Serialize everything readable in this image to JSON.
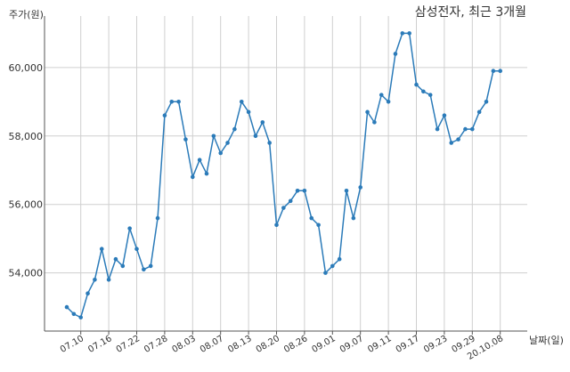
{
  "chart_data": {
    "type": "line",
    "title": "삼성전자, 최근 3개월",
    "xlabel": "날짜(일)",
    "ylabel": "주가(원)",
    "ylim": [
      52300,
      61400
    ],
    "yticks": [
      54000,
      56000,
      58000,
      60000
    ],
    "ytick_labels": [
      "54,000",
      "56,000",
      "58,000",
      "60,000"
    ],
    "xtick_labels": [
      "07.10",
      "07.16",
      "07.22",
      "07.28",
      "08.03",
      "08.07",
      "08.13",
      "08.20",
      "08.26",
      "09.01",
      "09.07",
      "09.11",
      "09.17",
      "09.23",
      "09.29",
      "20.10.08"
    ],
    "xtick_positions": [
      2,
      6,
      10,
      14,
      18,
      22,
      26,
      30,
      34,
      38,
      42,
      46,
      50,
      54,
      58,
      62
    ],
    "x_count": 63,
    "grid": true,
    "color": "#2b7bb9",
    "values": [
      53000,
      52800,
      52700,
      53400,
      53800,
      54700,
      53800,
      54400,
      54200,
      55300,
      54700,
      54100,
      54200,
      55600,
      58600,
      59000,
      59000,
      57900,
      56800,
      57300,
      56900,
      58000,
      57500,
      57800,
      58200,
      59000,
      58700,
      58000,
      58400,
      57800,
      55400,
      55900,
      56100,
      56400,
      56400,
      55600,
      55400,
      54000,
      54200,
      54400,
      56400,
      55600,
      56500,
      58700,
      58400,
      59200,
      59000,
      60400,
      61000,
      61000,
      59500,
      59300,
      59200,
      58200,
      58600,
      57800,
      57900,
      58200,
      58200,
      58700,
      59000,
      59900,
      59900
    ]
  }
}
